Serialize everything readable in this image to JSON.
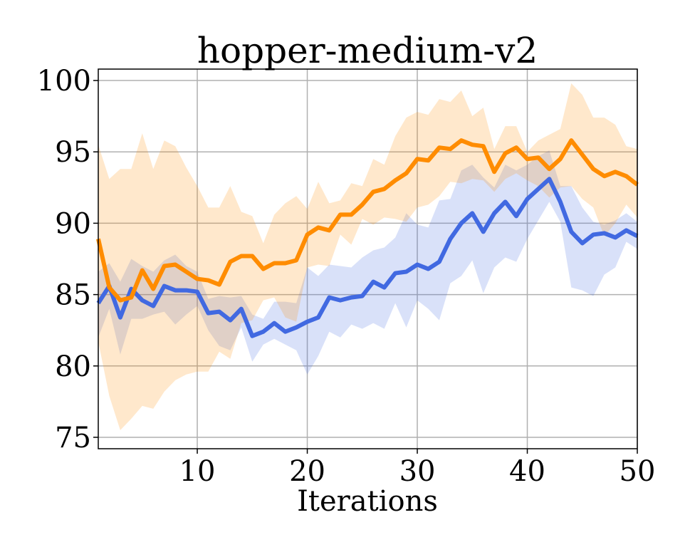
{
  "chart_data": {
    "type": "line",
    "title": "hopper-medium-v2",
    "xlabel": "Iterations",
    "ylabel": "",
    "xlim": [
      1,
      50
    ],
    "ylim": [
      74.2,
      100.8
    ],
    "xticks": [
      10,
      20,
      30,
      40,
      50
    ],
    "yticks": [
      75,
      80,
      85,
      90,
      95,
      100
    ],
    "grid": true,
    "legend": "none",
    "x": [
      1,
      2,
      3,
      4,
      5,
      6,
      7,
      8,
      9,
      10,
      11,
      12,
      13,
      14,
      15,
      16,
      17,
      18,
      19,
      20,
      21,
      22,
      23,
      24,
      25,
      26,
      27,
      28,
      29,
      30,
      31,
      32,
      33,
      34,
      35,
      36,
      37,
      38,
      39,
      40,
      41,
      42,
      43,
      44,
      45,
      46,
      47,
      48,
      49,
      50
    ],
    "series": [
      {
        "color": "#4169e1",
        "values": [
          84.4,
          85.6,
          83.4,
          85.4,
          84.6,
          84.2,
          85.6,
          85.3,
          85.3,
          85.2,
          83.7,
          83.8,
          83.2,
          84.0,
          82.1,
          82.4,
          83.0,
          82.4,
          82.7,
          83.1,
          83.4,
          84.8,
          84.6,
          84.8,
          84.9,
          85.9,
          85.5,
          86.5,
          86.6,
          87.1,
          86.8,
          87.3,
          88.9,
          90.0,
          90.7,
          89.4,
          90.7,
          91.5,
          90.5,
          91.7,
          92.4,
          93.1,
          91.5,
          89.4,
          88.6,
          89.2,
          89.3,
          89.0,
          89.5,
          89.1
        ],
        "upper": [
          86.6,
          87.2,
          85.9,
          87.5,
          87.0,
          86.6,
          87.4,
          87.8,
          87.0,
          86.6,
          84.7,
          84.9,
          84.8,
          84.9,
          83.6,
          83.3,
          84.5,
          84.5,
          84.4,
          86.9,
          86.3,
          87.1,
          87.0,
          86.9,
          87.6,
          88.1,
          88.3,
          89.0,
          90.7,
          89.9,
          89.7,
          91.6,
          91.7,
          93.7,
          94.1,
          93.2,
          92.5,
          94.1,
          93.7,
          94.1,
          94.7,
          95.1,
          92.6,
          92.6,
          91.1,
          90.1,
          89.9,
          90.2,
          90.7,
          90.1
        ],
        "lower": [
          82.0,
          84.0,
          80.8,
          83.3,
          83.3,
          83.6,
          83.8,
          82.9,
          83.6,
          84.2,
          82.5,
          81.4,
          81.1,
          82.7,
          80.3,
          81.5,
          81.9,
          81.5,
          81.1,
          79.4,
          80.7,
          82.4,
          82.0,
          82.9,
          82.6,
          83.0,
          82.6,
          84.4,
          82.7,
          84.6,
          84.0,
          83.2,
          85.8,
          86.3,
          87.4,
          85.1,
          86.9,
          87.6,
          87.3,
          88.9,
          90.2,
          91.5,
          90.1,
          85.5,
          85.3,
          84.9,
          86.4,
          86.9,
          88.7,
          88.2
        ]
      },
      {
        "color": "#ff8c00",
        "values": [
          88.9,
          85.5,
          84.6,
          84.8,
          86.7,
          85.4,
          87.0,
          87.1,
          86.6,
          86.1,
          86.0,
          85.7,
          87.3,
          87.7,
          87.7,
          86.8,
          87.2,
          87.2,
          87.4,
          89.2,
          89.7,
          89.5,
          90.6,
          90.6,
          91.3,
          92.2,
          92.4,
          93.0,
          93.5,
          94.5,
          94.4,
          95.3,
          95.2,
          95.8,
          95.5,
          95.4,
          93.6,
          94.9,
          95.3,
          94.5,
          94.6,
          93.8,
          94.5,
          95.8,
          94.8,
          93.8,
          93.3,
          93.6,
          93.3,
          92.7
        ],
        "upper": [
          95.5,
          93.1,
          93.8,
          93.8,
          96.3,
          93.8,
          95.8,
          95.4,
          93.9,
          92.6,
          91.1,
          91.1,
          92.6,
          90.8,
          90.5,
          88.6,
          90.6,
          91.4,
          91.9,
          91.0,
          92.9,
          91.4,
          91.6,
          92.8,
          92.6,
          94.5,
          94.1,
          96.1,
          97.4,
          97.8,
          97.6,
          98.7,
          98.5,
          99.3,
          97.5,
          98.1,
          95.2,
          96.8,
          96.8,
          95.0,
          95.8,
          96.2,
          96.6,
          99.8,
          99.0,
          97.4,
          97.4,
          96.9,
          95.4,
          95.2
        ],
        "lower": [
          81.7,
          77.9,
          75.5,
          76.3,
          77.2,
          77.0,
          78.2,
          79.0,
          79.4,
          79.6,
          79.6,
          81.0,
          80.5,
          83.0,
          83.2,
          84.6,
          84.8,
          83.4,
          83.1,
          86.9,
          87.1,
          87.0,
          89.2,
          88.5,
          90.3,
          89.9,
          90.4,
          90.3,
          90.1,
          91.1,
          91.3,
          91.9,
          92.9,
          92.8,
          93.1,
          93.0,
          92.2,
          93.1,
          93.5,
          93.0,
          92.6,
          91.8,
          92.5,
          92.6,
          91.7,
          91.1,
          89.1,
          90.0,
          91.3,
          90.4
        ]
      }
    ]
  }
}
